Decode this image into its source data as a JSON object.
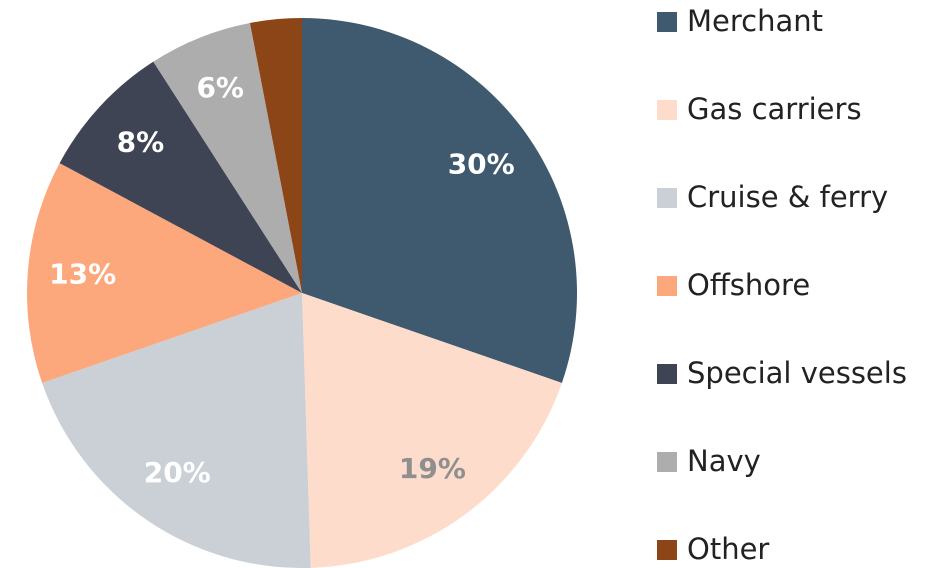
{
  "chart_data": {
    "type": "pie",
    "categories": [
      "Merchant",
      "Gas carriers",
      "Cruise & ferry",
      "Offshore",
      "Special vessels",
      "Navy",
      "Other"
    ],
    "values": [
      30,
      19,
      20,
      13,
      8,
      6,
      3
    ],
    "value_labels": [
      "30%",
      "19%",
      "20%",
      "13%",
      "8%",
      "6%",
      null
    ],
    "colors": [
      "#3f5a6e",
      "#fddccb",
      "#cbd0d6",
      "#fca77c",
      "#3f4455",
      "#adadad",
      "#8b4516"
    ],
    "label_colors": [
      "#ffffff",
      "#8f8f8f",
      "#ffffff",
      "#ffffff",
      "#ffffff",
      "#ffffff",
      "#ffffff"
    ],
    "legend": "right"
  }
}
